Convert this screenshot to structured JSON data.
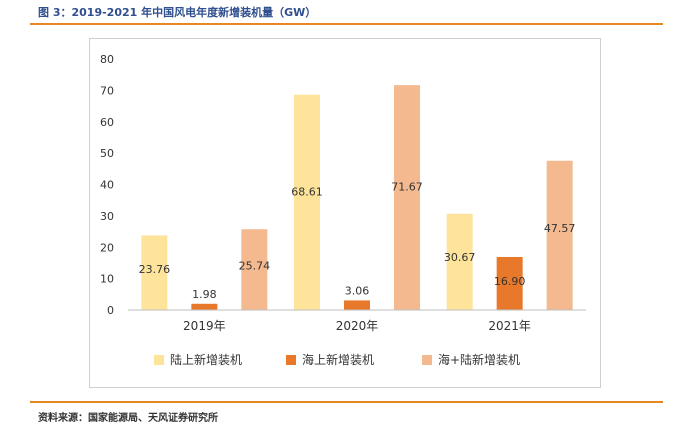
{
  "figure_title": "图 3：2019-2021 年中国风电年度新增装机量（GW）",
  "source": "资料来源：国家能源局、天风证券研究所",
  "colors": {
    "rule": "#e8861f",
    "title": "#2f4f8f",
    "grid": "#d9d9d9",
    "text": "#333333"
  },
  "chart_data": {
    "type": "bar",
    "title": "",
    "xlabel": "",
    "ylabel": "",
    "categories": [
      "2019年",
      "2020年",
      "2021年"
    ],
    "ylim": [
      0,
      80
    ],
    "yticks": [
      0,
      10,
      20,
      30,
      40,
      50,
      60,
      70,
      80
    ],
    "grid": false,
    "legend_position": "bottom",
    "series": [
      {
        "name": "陆上新增装机",
        "color": "#fde49a",
        "values": [
          23.76,
          68.61,
          30.67
        ],
        "labels": [
          "23.76",
          "68.61",
          "30.67"
        ]
      },
      {
        "name": "海上新增装机",
        "color": "#e8792b",
        "values": [
          1.98,
          3.06,
          16.9
        ],
        "labels": [
          "1.98",
          "3.06",
          "16.90"
        ]
      },
      {
        "name": "海+陆新增装机",
        "color": "#f4b98e",
        "values": [
          25.74,
          71.67,
          47.57
        ],
        "labels": [
          "25.74",
          "71.67",
          "47.57"
        ]
      }
    ]
  }
}
